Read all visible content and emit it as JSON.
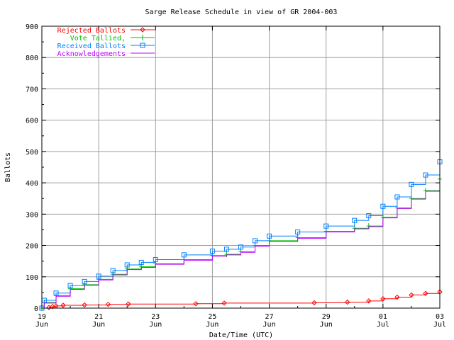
{
  "chart_data": {
    "type": "line",
    "title": "Sarge Release Schedule in view of GR 2004-003",
    "xlabel": "Date/Time (UTC)",
    "ylabel": "Ballots",
    "xlim": [
      "2004-06-19T00:00",
      "2004-07-03T00:00"
    ],
    "ylim": [
      0,
      900
    ],
    "grid": true,
    "legend_position": "top-left",
    "x_ticks": [
      {
        "at": "2004-06-19T00:00",
        "day": "19",
        "month": "Jun"
      },
      {
        "at": "2004-06-21T00:00",
        "day": "21",
        "month": "Jun"
      },
      {
        "at": "2004-06-23T00:00",
        "day": "23",
        "month": "Jun"
      },
      {
        "at": "2004-06-25T00:00",
        "day": "25",
        "month": "Jun"
      },
      {
        "at": "2004-06-27T00:00",
        "day": "27",
        "month": "Jun"
      },
      {
        "at": "2004-06-29T00:00",
        "day": "29",
        "month": "Jun"
      },
      {
        "at": "2004-07-01T00:00",
        "day": "01",
        "month": "Jul"
      },
      {
        "at": "2004-07-03T00:00",
        "day": "03",
        "month": "Jul"
      }
    ],
    "y_ticks": [
      0,
      100,
      200,
      300,
      400,
      500,
      600,
      700,
      800,
      900
    ],
    "series": [
      {
        "name": "Rejected Ballots",
        "color": "#ff0000",
        "marker": "diamond",
        "points": [
          [
            "2004-06-19T06:00",
            2
          ],
          [
            "2004-06-19T09:00",
            5
          ],
          [
            "2004-06-19T12:00",
            7
          ],
          [
            "2004-06-19T18:00",
            9
          ],
          [
            "2004-06-20T12:00",
            10
          ],
          [
            "2004-06-21T08:00",
            12
          ],
          [
            "2004-06-22T01:00",
            13
          ],
          [
            "2004-06-24T10:00",
            14
          ],
          [
            "2004-06-25T10:00",
            16
          ],
          [
            "2004-06-28T14:00",
            17
          ],
          [
            "2004-06-29T18:00",
            19
          ],
          [
            "2004-06-30T12:00",
            23
          ],
          [
            "2004-07-01T00:00",
            30
          ],
          [
            "2004-07-01T12:00",
            35
          ],
          [
            "2004-07-02T00:00",
            42
          ],
          [
            "2004-07-02T12:00",
            47
          ],
          [
            "2004-07-03T00:00",
            52
          ]
        ]
      },
      {
        "name": "Vote Tallied,",
        "color": "#00c000",
        "marker": "plus",
        "points": [
          [
            "2004-06-19T00:00",
            0
          ],
          [
            "2004-06-19T02:00",
            18
          ],
          [
            "2004-06-19T12:00",
            40
          ],
          [
            "2004-06-20T00:00",
            62
          ],
          [
            "2004-06-20T12:00",
            75
          ],
          [
            "2004-06-21T00:00",
            92
          ],
          [
            "2004-06-21T12:00",
            108
          ],
          [
            "2004-06-22T00:00",
            125
          ],
          [
            "2004-06-22T12:00",
            132
          ],
          [
            "2004-06-23T00:00",
            142
          ],
          [
            "2004-06-24T00:00",
            155
          ],
          [
            "2004-06-25T00:00",
            168
          ],
          [
            "2004-06-25T12:00",
            172
          ],
          [
            "2004-06-26T00:00",
            180
          ],
          [
            "2004-06-26T12:00",
            200
          ],
          [
            "2004-06-27T00:00",
            215
          ],
          [
            "2004-06-28T00:00",
            225
          ],
          [
            "2004-06-29T00:00",
            245
          ],
          [
            "2004-06-30T00:00",
            255
          ],
          [
            "2004-06-30T12:00",
            262
          ],
          [
            "2004-07-01T00:00",
            290
          ],
          [
            "2004-07-01T12:00",
            320
          ],
          [
            "2004-07-02T00:00",
            350
          ],
          [
            "2004-07-02T12:00",
            375
          ],
          [
            "2004-07-03T00:00",
            412
          ]
        ]
      },
      {
        "name": "Received Ballots",
        "color": "#0080ff",
        "marker": "square",
        "points": [
          [
            "2004-06-19T00:00",
            0
          ],
          [
            "2004-06-19T02:00",
            25
          ],
          [
            "2004-06-19T12:00",
            48
          ],
          [
            "2004-06-20T00:00",
            72
          ],
          [
            "2004-06-20T12:00",
            85
          ],
          [
            "2004-06-21T00:00",
            102
          ],
          [
            "2004-06-21T12:00",
            120
          ],
          [
            "2004-06-22T00:00",
            138
          ],
          [
            "2004-06-22T12:00",
            146
          ],
          [
            "2004-06-23T00:00",
            155
          ],
          [
            "2004-06-24T00:00",
            170
          ],
          [
            "2004-06-25T00:00",
            182
          ],
          [
            "2004-06-25T12:00",
            188
          ],
          [
            "2004-06-26T00:00",
            195
          ],
          [
            "2004-06-26T12:00",
            215
          ],
          [
            "2004-06-27T00:00",
            230
          ],
          [
            "2004-06-28T00:00",
            243
          ],
          [
            "2004-06-29T00:00",
            262
          ],
          [
            "2004-06-30T00:00",
            280
          ],
          [
            "2004-06-30T12:00",
            295
          ],
          [
            "2004-07-01T00:00",
            325
          ],
          [
            "2004-07-01T12:00",
            355
          ],
          [
            "2004-07-02T00:00",
            395
          ],
          [
            "2004-07-02T12:00",
            425
          ],
          [
            "2004-07-03T00:00",
            467
          ]
        ]
      },
      {
        "name": "Acknowledgements",
        "color": "#c000ff",
        "marker": "none",
        "points": [
          [
            "2004-06-19T00:00",
            0
          ],
          [
            "2004-06-19T02:00",
            16
          ],
          [
            "2004-06-19T12:00",
            38
          ],
          [
            "2004-06-20T00:00",
            60
          ],
          [
            "2004-06-20T12:00",
            73
          ],
          [
            "2004-06-21T00:00",
            90
          ],
          [
            "2004-06-21T12:00",
            106
          ],
          [
            "2004-06-22T00:00",
            123
          ],
          [
            "2004-06-22T12:00",
            130
          ],
          [
            "2004-06-23T00:00",
            140
          ],
          [
            "2004-06-24T00:00",
            153
          ],
          [
            "2004-06-25T00:00",
            166
          ],
          [
            "2004-06-25T12:00",
            170
          ],
          [
            "2004-06-26T00:00",
            178
          ],
          [
            "2004-06-26T12:00",
            198
          ],
          [
            "2004-06-27T00:00",
            213
          ],
          [
            "2004-06-28T00:00",
            223
          ],
          [
            "2004-06-29T00:00",
            243
          ],
          [
            "2004-06-30T00:00",
            253
          ],
          [
            "2004-06-30T12:00",
            260
          ],
          [
            "2004-07-01T00:00",
            288
          ],
          [
            "2004-07-01T12:00",
            318
          ],
          [
            "2004-07-02T00:00",
            348
          ],
          [
            "2004-07-02T12:00",
            373
          ],
          [
            "2004-07-03T00:00",
            410
          ]
        ]
      }
    ]
  }
}
